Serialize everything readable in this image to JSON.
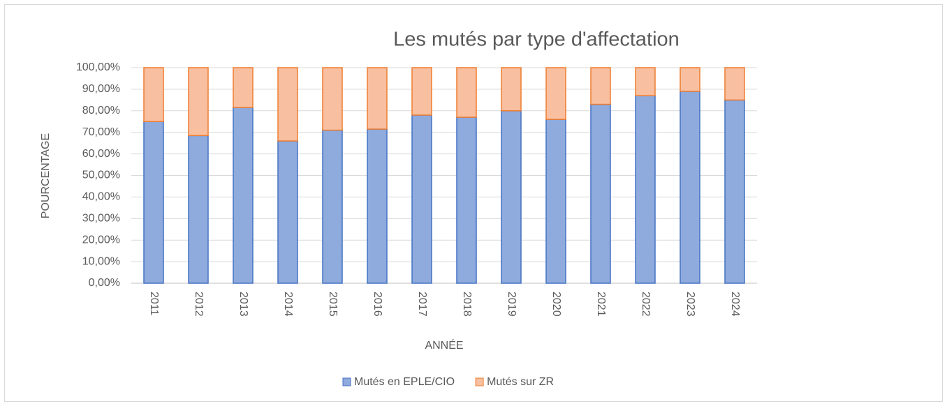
{
  "chart_data": {
    "type": "stacked_bar",
    "title": "Les mutés par type d'affectation",
    "ylabel": "POURCENTAGE",
    "xlabel": "ANNÉE",
    "categories": [
      "2011",
      "2012",
      "2013",
      "2014",
      "2015",
      "2016",
      "2017",
      "2018",
      "2019",
      "2020",
      "2021",
      "2022",
      "2023",
      "2024"
    ],
    "series": [
      {
        "name": "Mutés en EPLE/CIO",
        "color": "#8faadc",
        "edge_color": "#4472c4",
        "values": [
          75,
          68.5,
          81.5,
          66,
          71,
          71.5,
          78,
          77,
          80,
          76,
          83,
          87,
          89,
          85
        ]
      },
      {
        "name": "Mutés sur ZR",
        "color": "#f8bfa0",
        "edge_color": "#ed7d31",
        "values": [
          25,
          31.5,
          18.5,
          34,
          29,
          28.5,
          22,
          23,
          20,
          24,
          17,
          13,
          11,
          15
        ]
      }
    ],
    "ylim": [
      0,
      100
    ],
    "yticks": [
      {
        "value": 0,
        "label": "0,00%"
      },
      {
        "value": 10,
        "label": "10,00%"
      },
      {
        "value": 20,
        "label": "20,00%"
      },
      {
        "value": 30,
        "label": "30,00%"
      },
      {
        "value": 40,
        "label": "40,00%"
      },
      {
        "value": 50,
        "label": "50,00%"
      },
      {
        "value": 60,
        "label": "60,00%"
      },
      {
        "value": 70,
        "label": "70,00%"
      },
      {
        "value": 80,
        "label": "80,00%"
      },
      {
        "value": 90,
        "label": "90,00%"
      },
      {
        "value": 100,
        "label": "100,00%"
      }
    ],
    "grid": true,
    "legend": "bottom"
  }
}
